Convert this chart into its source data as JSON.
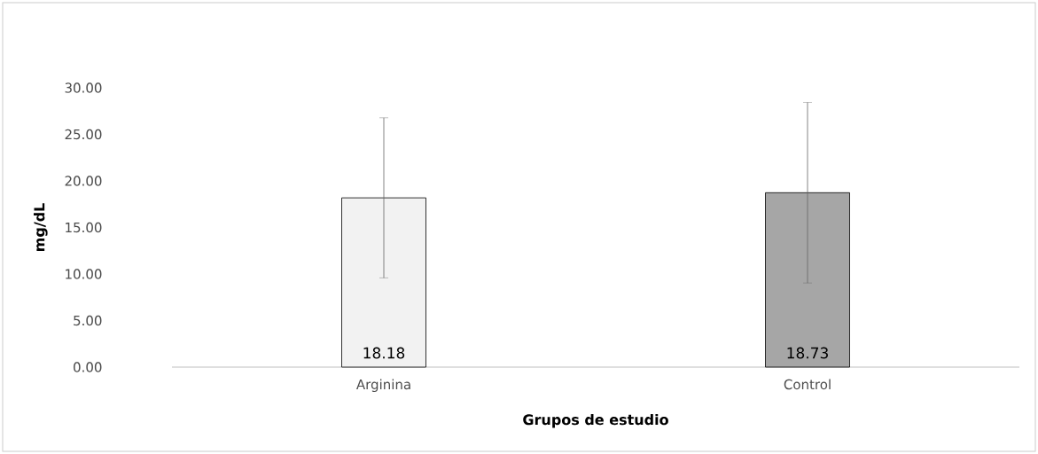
{
  "chart_data": {
    "type": "bar",
    "xlabel": "Grupos de estudio",
    "ylabel": "mg/dL",
    "categories": [
      "Arginina",
      "Control"
    ],
    "values": [
      18.18,
      18.73
    ],
    "colors": [
      "#f2f2f2",
      "#a6a6a6"
    ],
    "errors": [
      8.6,
      9.7
    ],
    "value_labels": [
      "18.18",
      "18.73"
    ],
    "ylim": [
      0,
      30
    ],
    "yticks": [
      {
        "value": 0,
        "label": "0.00"
      },
      {
        "value": 5,
        "label": "5.00"
      },
      {
        "value": 10,
        "label": "10.00"
      },
      {
        "value": 15,
        "label": "15.00"
      },
      {
        "value": 20,
        "label": "20.00"
      },
      {
        "value": 25,
        "label": "25.00"
      },
      {
        "value": 30,
        "label": "30.00"
      }
    ],
    "grid": false
  }
}
